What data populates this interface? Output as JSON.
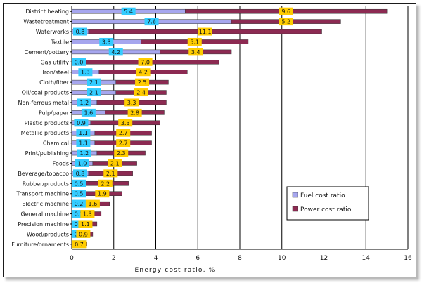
{
  "chart_data": {
    "type": "bar",
    "orientation": "horizontal",
    "stacked": true,
    "title": "",
    "xlabel": "Energy cost ratio, %",
    "ylabel": "",
    "xlim": [
      0,
      16
    ],
    "xticks": [
      0,
      2,
      4,
      6,
      8,
      10,
      12,
      14,
      16
    ],
    "grid": "vertical",
    "legend_position": "bottom-right",
    "categories": [
      "District heating",
      "Wastetreatment",
      "Waterworks",
      "Textile",
      "Cement/pottery",
      "Gas utility",
      "Iron/steel",
      "Cloth/fiber",
      "Oil/coal products",
      "Non-ferrous metal",
      "Pulp/paper",
      "Plastic products",
      "Metallic products",
      "Chemical",
      "Print/publishing",
      "Foods",
      "Beverage/tobacco",
      "Rubber/products",
      "Transport machine",
      "Electric machine",
      "General machine",
      "Precision machine",
      "Wood/products",
      "Furniture/ornaments"
    ],
    "series": [
      {
        "name": "Fuel cost ratio",
        "color": "#a6a6ee",
        "label_bg": "#33ccff",
        "values": [
          5.4,
          7.6,
          0.8,
          3.3,
          4.2,
          0.0,
          1.3,
          2.1,
          2.1,
          1.2,
          1.6,
          0.9,
          1.1,
          1.1,
          1.2,
          1.0,
          0.8,
          0.5,
          0.5,
          0.2,
          0.1,
          0.1,
          0.1,
          0.0
        ],
        "labels": [
          "5.4",
          "7.6",
          "0.8",
          "3.3",
          "4.2",
          "0.0",
          "1.3",
          "2.1",
          "2.1",
          "1.2",
          "1.6",
          "0.9",
          "1.1",
          "1.1",
          "1.2",
          "1.0",
          "0.8",
          "0.5",
          "0.5",
          "0.2",
          "0.1",
          "0.1",
          "0.1",
          "0"
        ]
      },
      {
        "name": "Power cost ratio",
        "color": "#8c2a52",
        "label_bg": "#ffcc00",
        "values": [
          9.6,
          5.2,
          11.1,
          5.1,
          3.4,
          7.0,
          4.2,
          2.5,
          2.4,
          3.3,
          2.8,
          3.3,
          2.7,
          2.7,
          2.3,
          2.1,
          2.1,
          2.2,
          1.9,
          1.6,
          1.3,
          1.1,
          0.9,
          0.7
        ],
        "labels": [
          "9.6",
          "5.2",
          "11.1",
          "5.1",
          "3.4",
          "7.0",
          "4.2",
          "2.5",
          "2.4",
          "3.3",
          "2.8",
          "3.3",
          "2.7",
          "2.7",
          "2.3",
          "2.1",
          "2.1",
          "2.2",
          "1.9",
          "1.6",
          "1.3",
          "1.1",
          "0.9",
          "0.7"
        ]
      }
    ]
  }
}
